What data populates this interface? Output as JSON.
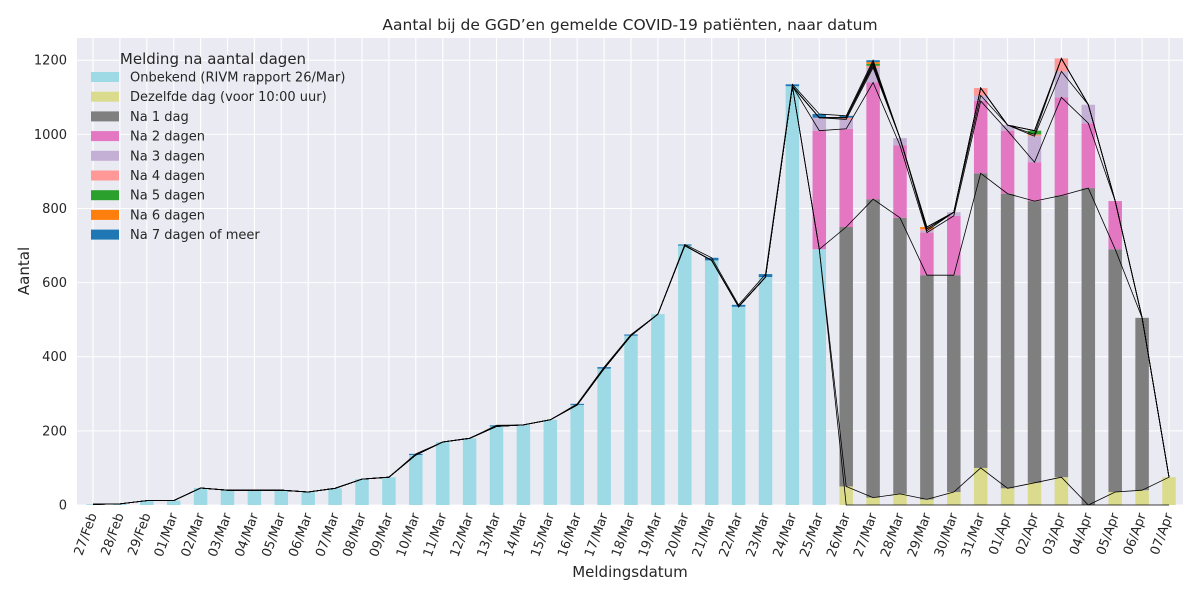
{
  "chart_data": {
    "type": "bar",
    "stacked": true,
    "title": "Aantal bij de GGD’en gemelde COVID-19 patiënten, naar datum",
    "xlabel": "Meldingsdatum",
    "ylabel": "Aantal",
    "ylim": [
      0,
      1260
    ],
    "yticks": [
      0,
      200,
      400,
      600,
      800,
      1000,
      1200
    ],
    "grid": true,
    "legend_title": "Melding na aantal dagen",
    "legend_position": "top-left",
    "categories": [
      "27/Feb",
      "28/Feb",
      "29/Feb",
      "01/Mar",
      "02/Mar",
      "03/Mar",
      "04/Mar",
      "05/Mar",
      "06/Mar",
      "07/Mar",
      "08/Mar",
      "09/Mar",
      "10/Mar",
      "11/Mar",
      "12/Mar",
      "13/Mar",
      "14/Mar",
      "15/Mar",
      "16/Mar",
      "17/Mar",
      "18/Mar",
      "19/Mar",
      "20/Mar",
      "21/Mar",
      "22/Mar",
      "23/Mar",
      "24/Mar",
      "25/Mar",
      "26/Mar",
      "27/Mar",
      "28/Mar",
      "29/Mar",
      "30/Mar",
      "31/Mar",
      "01/Apr",
      "02/Apr",
      "03/Apr",
      "04/Apr",
      "05/Apr",
      "06/Apr",
      "07/Apr"
    ],
    "series": [
      {
        "name": "Onbekend (RIVM rapport 26/Mar)",
        "color": "#9edae5",
        "values": [
          2,
          3,
          12,
          12,
          46,
          40,
          40,
          40,
          35,
          45,
          70,
          75,
          135,
          170,
          180,
          212,
          216,
          230,
          270,
          368,
          457,
          515,
          700,
          660,
          535,
          615,
          1130,
          690,
          0,
          0,
          0,
          0,
          0,
          0,
          0,
          0,
          0,
          0,
          0,
          0,
          0
        ]
      },
      {
        "name": "Dezelfde dag (voor 10:00 uur)",
        "color": "#dbdb8d",
        "values": [
          0,
          0,
          0,
          0,
          0,
          0,
          0,
          0,
          0,
          0,
          0,
          0,
          0,
          0,
          0,
          0,
          0,
          0,
          0,
          0,
          0,
          0,
          0,
          0,
          0,
          0,
          0,
          0,
          50,
          20,
          30,
          15,
          35,
          100,
          45,
          60,
          75,
          0,
          35,
          40,
          75
        ]
      },
      {
        "name": "Na 1 dag",
        "color": "#7f7f7f",
        "values": [
          0,
          0,
          0,
          0,
          0,
          0,
          0,
          0,
          0,
          0,
          0,
          0,
          0,
          0,
          0,
          0,
          0,
          0,
          0,
          0,
          0,
          0,
          0,
          0,
          0,
          0,
          0,
          0,
          700,
          805,
          745,
          605,
          585,
          795,
          795,
          760,
          760,
          855,
          655,
          465,
          0
        ]
      },
      {
        "name": "Na 2 dagen",
        "color": "#e377c2",
        "values": [
          0,
          0,
          0,
          0,
          0,
          0,
          0,
          0,
          0,
          0,
          0,
          0,
          0,
          0,
          0,
          0,
          0,
          0,
          0,
          0,
          0,
          0,
          0,
          0,
          0,
          0,
          0,
          320,
          265,
          315,
          195,
          115,
          160,
          195,
          170,
          105,
          265,
          175,
          130,
          0,
          0
        ]
      },
      {
        "name": "Na 3 dagen",
        "color": "#c5b0d5",
        "values": [
          0,
          0,
          0,
          0,
          0,
          0,
          0,
          0,
          0,
          0,
          0,
          0,
          0,
          0,
          0,
          0,
          0,
          0,
          0,
          0,
          0,
          0,
          0,
          0,
          0,
          0,
          0,
          35,
          25,
          40,
          20,
          5,
          10,
          15,
          15,
          70,
          70,
          50,
          0,
          0,
          0
        ]
      },
      {
        "name": "Na 4 dagen",
        "color": "#ff9896",
        "values": [
          0,
          0,
          0,
          0,
          0,
          0,
          0,
          0,
          0,
          0,
          0,
          0,
          0,
          0,
          0,
          0,
          0,
          0,
          0,
          0,
          0,
          0,
          0,
          0,
          0,
          0,
          0,
          0,
          5,
          5,
          0,
          5,
          0,
          20,
          0,
          5,
          35,
          0,
          0,
          0,
          0
        ]
      },
      {
        "name": "Na 5 dagen",
        "color": "#2ca02c",
        "values": [
          0,
          0,
          0,
          0,
          0,
          0,
          0,
          0,
          0,
          0,
          0,
          0,
          0,
          0,
          0,
          0,
          0,
          0,
          0,
          0,
          0,
          0,
          0,
          0,
          0,
          0,
          0,
          0,
          0,
          5,
          0,
          0,
          0,
          0,
          0,
          10,
          0,
          0,
          0,
          0,
          0
        ]
      },
      {
        "name": "Na 6 dagen",
        "color": "#ff7f0e",
        "values": [
          0,
          0,
          0,
          0,
          0,
          0,
          0,
          0,
          0,
          0,
          0,
          0,
          0,
          0,
          0,
          0,
          0,
          0,
          0,
          0,
          0,
          0,
          0,
          0,
          0,
          0,
          0,
          0,
          0,
          5,
          0,
          5,
          0,
          0,
          0,
          0,
          0,
          0,
          0,
          0,
          0
        ]
      },
      {
        "name": "Na 7 dagen of meer",
        "color": "#1f77b4",
        "values": [
          0,
          0,
          0,
          0,
          0,
          0,
          0,
          0,
          0,
          0,
          0,
          0,
          3,
          0,
          0,
          3,
          0,
          0,
          3,
          4,
          3,
          0,
          3,
          7,
          5,
          8,
          5,
          10,
          5,
          5,
          0,
          0,
          0,
          0,
          0,
          0,
          0,
          0,
          0,
          0,
          0
        ]
      }
    ]
  }
}
